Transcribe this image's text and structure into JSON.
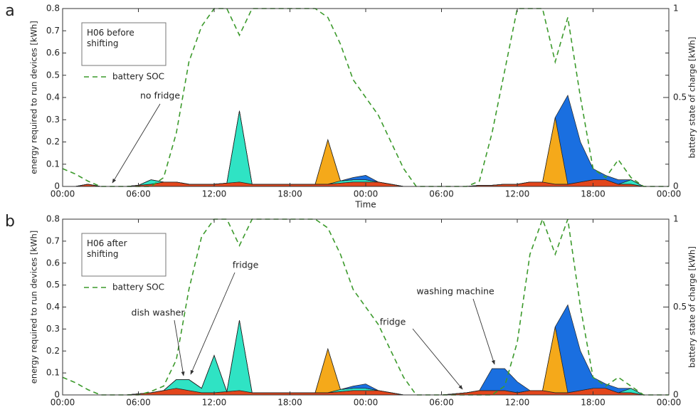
{
  "chart_data": [
    {
      "type": "area",
      "panel_label": "a",
      "legend_title": "H06 before shifting",
      "xlabel": "Time",
      "ylabel": "energy required to run devices [kWh]",
      "y2label": "battery state of charge [kWh]",
      "annotations": [
        "no fridge"
      ],
      "x": [
        0,
        1,
        2,
        3,
        4,
        5,
        6,
        7,
        8,
        9,
        10,
        11,
        12,
        13,
        14,
        15,
        16,
        17,
        18,
        19,
        20,
        21,
        22,
        23,
        24,
        25,
        26,
        27,
        28,
        29,
        30,
        31,
        32,
        33,
        34,
        35,
        36,
        37,
        38,
        39,
        40,
        41,
        42,
        43,
        44,
        45,
        46,
        47,
        48
      ],
      "xlim": [
        0,
        48
      ],
      "xticks": [
        {
          "value": 0,
          "label": "00:00"
        },
        {
          "value": 6,
          "label": "06:00"
        },
        {
          "value": 12,
          "label": "12:00"
        },
        {
          "value": 18,
          "label": "18:00"
        },
        {
          "value": 24,
          "label": "00:00"
        },
        {
          "value": 30,
          "label": "06:00"
        },
        {
          "value": 36,
          "label": "12:00"
        },
        {
          "value": 42,
          "label": "18:00"
        },
        {
          "value": 48,
          "label": "00:00"
        }
      ],
      "ylim": [
        0,
        0.8
      ],
      "yticks": [
        0,
        0.1,
        0.2,
        0.3,
        0.4,
        0.5,
        0.6,
        0.7,
        0.8
      ],
      "y2lim": [
        0,
        1
      ],
      "y2ticks": [
        0,
        0.5,
        1
      ],
      "series": [
        {
          "color": "#e2461c",
          "values": [
            0,
            0,
            0.01,
            0,
            0,
            0,
            0.005,
            0.01,
            0.02,
            0.02,
            0.01,
            0.01,
            0.01,
            0.015,
            0.02,
            0.01,
            0.01,
            0.01,
            0.01,
            0.01,
            0.01,
            0.01,
            0.015,
            0.02,
            0.02,
            0.02,
            0.01,
            0,
            0,
            0,
            0,
            0,
            0,
            0.005,
            0.005,
            0.01,
            0.01,
            0.02,
            0.02,
            0.01,
            0.01,
            0.02,
            0.03,
            0.03,
            0.01,
            0.01,
            0,
            0,
            0
          ]
        },
        {
          "color": "#2fe3c4",
          "values": [
            0,
            0,
            0,
            0,
            0,
            0,
            0,
            0.02,
            0,
            0,
            0,
            0,
            0,
            0,
            0.32,
            0,
            0,
            0,
            0,
            0,
            0,
            0,
            0.01,
            0.01,
            0.01,
            0,
            0,
            0,
            0,
            0,
            0,
            0,
            0,
            0,
            0,
            0,
            0,
            0,
            0,
            0,
            0,
            0,
            0,
            0,
            0,
            0.02,
            0,
            0,
            0
          ]
        },
        {
          "color": "#f5a91a",
          "values": [
            0,
            0,
            0,
            0,
            0,
            0,
            0,
            0,
            0,
            0,
            0,
            0,
            0,
            0,
            0,
            0,
            0,
            0,
            0,
            0,
            0,
            0.2,
            0,
            0,
            0,
            0,
            0,
            0,
            0,
            0,
            0,
            0,
            0,
            0,
            0,
            0,
            0,
            0,
            0,
            0.3,
            0,
            0,
            0,
            0,
            0,
            0,
            0,
            0,
            0
          ]
        },
        {
          "color": "#1a6fe0",
          "values": [
            0,
            0,
            0,
            0,
            0,
            0,
            0,
            0,
            0,
            0,
            0,
            0,
            0,
            0,
            0,
            0,
            0,
            0,
            0,
            0,
            0,
            0,
            0,
            0.01,
            0.02,
            0,
            0,
            0,
            0,
            0,
            0,
            0,
            0,
            0,
            0,
            0,
            0,
            0,
            0,
            0,
            0.4,
            0.18,
            0.05,
            0.02,
            0.02,
            0,
            0,
            0,
            0
          ]
        },
        {
          "name": "battery SOC",
          "color": "#3c9a2c",
          "axis": "y2",
          "style": "dashed",
          "values": [
            0.1,
            0.07,
            0.03,
            0,
            0,
            0,
            0,
            0,
            0.05,
            0.3,
            0.7,
            0.9,
            1,
            1,
            0.85,
            1,
            1,
            1,
            1,
            1,
            1,
            0.95,
            0.8,
            0.6,
            0.5,
            0.4,
            0.25,
            0.1,
            0,
            0,
            0,
            0,
            0,
            0.03,
            0.3,
            0.65,
            1,
            1,
            1,
            0.7,
            0.95,
            0.5,
            0.1,
            0.05,
            0.15,
            0.05,
            0,
            0,
            0
          ]
        }
      ]
    },
    {
      "type": "area",
      "panel_label": "b",
      "legend_title": "H06 after shifting",
      "ylabel": "energy required to run devices [kWh]",
      "y2label": "battery state of charge [kWh]",
      "annotations": [
        "dish washer",
        "fridge",
        "fridge",
        "washing machine"
      ],
      "x": [
        0,
        1,
        2,
        3,
        4,
        5,
        6,
        7,
        8,
        9,
        10,
        11,
        12,
        13,
        14,
        15,
        16,
        17,
        18,
        19,
        20,
        21,
        22,
        23,
        24,
        25,
        26,
        27,
        28,
        29,
        30,
        31,
        32,
        33,
        34,
        35,
        36,
        37,
        38,
        39,
        40,
        41,
        42,
        43,
        44,
        45,
        46,
        47,
        48
      ],
      "xlim": [
        0,
        48
      ],
      "xticks": [
        {
          "value": 0,
          "label": "00:00"
        },
        {
          "value": 6,
          "label": "06:00"
        },
        {
          "value": 12,
          "label": "12:00"
        },
        {
          "value": 18,
          "label": "18:00"
        },
        {
          "value": 24,
          "label": "00:00"
        },
        {
          "value": 30,
          "label": "06:00"
        },
        {
          "value": 36,
          "label": "12:00"
        },
        {
          "value": 42,
          "label": "18:00"
        },
        {
          "value": 48,
          "label": "00:00"
        }
      ],
      "ylim": [
        0,
        0.8
      ],
      "yticks": [
        0,
        0.1,
        0.2,
        0.3,
        0.4,
        0.5,
        0.6,
        0.7,
        0.8
      ],
      "y2lim": [
        0,
        1
      ],
      "y2ticks": [
        0,
        0.5,
        1
      ],
      "series": [
        {
          "color": "#e2461c",
          "values": [
            0,
            0,
            0,
            0,
            0,
            0,
            0.005,
            0.01,
            0.02,
            0.03,
            0.02,
            0.01,
            0.01,
            0.015,
            0.02,
            0.01,
            0.01,
            0.01,
            0.01,
            0.01,
            0.01,
            0.01,
            0.015,
            0.02,
            0.02,
            0.02,
            0.01,
            0,
            0,
            0,
            0,
            0.005,
            0.01,
            0.02,
            0.02,
            0.02,
            0.01,
            0.02,
            0.02,
            0.01,
            0.01,
            0.02,
            0.03,
            0.03,
            0.01,
            0.01,
            0,
            0,
            0
          ]
        },
        {
          "color": "#2fe3c4",
          "values": [
            0,
            0,
            0,
            0,
            0,
            0,
            0,
            0,
            0,
            0.04,
            0.05,
            0.02,
            0.17,
            0,
            0.32,
            0,
            0,
            0,
            0,
            0,
            0,
            0,
            0.01,
            0.01,
            0.01,
            0,
            0,
            0,
            0,
            0,
            0,
            0,
            0,
            0,
            0,
            0,
            0,
            0,
            0,
            0,
            0,
            0,
            0,
            0,
            0,
            0.02,
            0,
            0,
            0
          ]
        },
        {
          "color": "#f5a91a",
          "values": [
            0,
            0,
            0,
            0,
            0,
            0,
            0,
            0,
            0,
            0,
            0,
            0,
            0,
            0,
            0,
            0,
            0,
            0,
            0,
            0,
            0,
            0.2,
            0,
            0,
            0,
            0,
            0,
            0,
            0,
            0,
            0,
            0,
            0,
            0,
            0,
            0,
            0,
            0,
            0,
            0.3,
            0,
            0,
            0,
            0,
            0,
            0,
            0,
            0,
            0
          ]
        },
        {
          "color": "#1a6fe0",
          "values": [
            0,
            0,
            0,
            0,
            0,
            0,
            0,
            0,
            0,
            0,
            0,
            0,
            0,
            0,
            0,
            0,
            0,
            0,
            0,
            0,
            0,
            0,
            0,
            0.01,
            0.02,
            0,
            0,
            0,
            0,
            0,
            0,
            0,
            0,
            0,
            0.1,
            0.1,
            0.05,
            0,
            0,
            0,
            0.4,
            0.18,
            0.05,
            0.02,
            0.02,
            0,
            0,
            0,
            0
          ]
        },
        {
          "name": "battery SOC",
          "color": "#3c9a2c",
          "axis": "y2",
          "style": "dashed",
          "values": [
            0.1,
            0.07,
            0.03,
            0,
            0,
            0,
            0,
            0.02,
            0.05,
            0.2,
            0.6,
            0.9,
            1,
            1,
            0.85,
            1,
            1,
            1,
            1,
            1,
            1,
            0.95,
            0.8,
            0.6,
            0.5,
            0.4,
            0.25,
            0.1,
            0,
            0,
            0,
            0,
            0,
            0,
            0,
            0.05,
            0.3,
            0.8,
            1,
            0.8,
            1,
            0.5,
            0.1,
            0.05,
            0.1,
            0.05,
            0,
            0,
            0
          ]
        }
      ]
    }
  ]
}
